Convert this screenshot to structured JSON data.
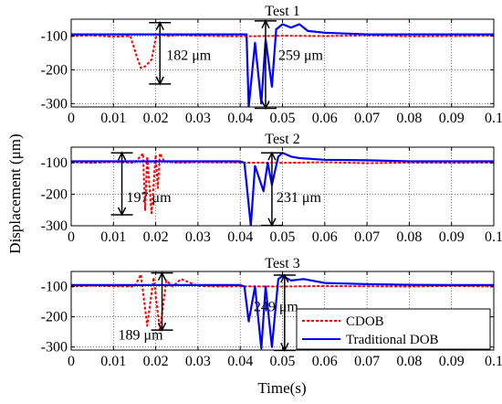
{
  "chart_data": {
    "type": "line",
    "ylabel": "Displacement (μm)",
    "xlabel": "Time(s)",
    "grid": true,
    "legend": {
      "placement": "bottom-right of third panel",
      "entries": [
        {
          "name": "CDOB",
          "color": "#ff0000",
          "style": "dotted"
        },
        {
          "name": "Traditional DOB",
          "color": "#0000ff",
          "style": "solid"
        }
      ]
    },
    "xlim": [
      0,
      0.1
    ],
    "x_ticks": [
      "0",
      "0.01",
      "0.02",
      "0.03",
      "0.04",
      "0.05",
      "0.06",
      "0.07",
      "0.08",
      "0.09",
      "0.1"
    ],
    "y_ticks": [
      "-100",
      "-200",
      "-300"
    ],
    "panels": [
      {
        "title": "Test 1",
        "ylim": [
          -310,
          -50
        ],
        "annotations": [
          {
            "text": "182 μm",
            "x": 0.021,
            "y_top": -60,
            "y_bottom": -242
          },
          {
            "text": "259 μm",
            "x": 0.046,
            "y_top": -55,
            "y_bottom": -314
          }
        ],
        "series": [
          {
            "name": "CDOB",
            "x": [
              0,
              0.005,
              0.01,
              0.014,
              0.0155,
              0.0165,
              0.0175,
              0.019,
              0.02,
              0.021,
              0.023,
              0.025,
              0.03,
              0.035,
              0.04,
              0.045,
              0.05,
              0.06,
              0.07,
              0.08,
              0.09,
              0.1
            ],
            "y": [
              -100,
              -98,
              -102,
              -100,
              -160,
              -195,
              -190,
              -170,
              -105,
              -95,
              -100,
              -97,
              -99,
              -100,
              -101,
              -100,
              -99,
              -100,
              -98,
              -101,
              -100,
              -99
            ]
          },
          {
            "name": "Traditional DOB",
            "x": [
              0,
              0.005,
              0.01,
              0.015,
              0.02,
              0.025,
              0.03,
              0.035,
              0.04,
              0.0415,
              0.042,
              0.0435,
              0.045,
              0.046,
              0.0475,
              0.0485,
              0.05,
              0.052,
              0.054,
              0.056,
              0.06,
              0.07,
              0.08,
              0.09,
              0.1
            ],
            "y": [
              -95,
              -95,
              -95,
              -95,
              -95,
              -95,
              -95,
              -95,
              -95,
              -95,
              -310,
              -120,
              -300,
              -110,
              -250,
              -80,
              -65,
              -75,
              -65,
              -85,
              -90,
              -95,
              -95,
              -95,
              -95
            ]
          }
        ]
      },
      {
        "title": "Test 2",
        "ylim": [
          -300,
          -50
        ],
        "annotations": [
          {
            "text": "197 μm",
            "x": 0.012,
            "y_top": -68,
            "y_bottom": -265
          },
          {
            "text": "231 μm",
            "x": 0.0475,
            "y_top": -68,
            "y_bottom": -299
          }
        ],
        "series": [
          {
            "name": "CDOB",
            "x": [
              0,
              0.005,
              0.01,
              0.015,
              0.017,
              0.0175,
              0.018,
              0.019,
              0.02,
              0.0205,
              0.021,
              0.022,
              0.025,
              0.03,
              0.04,
              0.05,
              0.06,
              0.07,
              0.08,
              0.09,
              0.1
            ],
            "y": [
              -98,
              -100,
              -97,
              -100,
              -70,
              -250,
              -80,
              -260,
              -75,
              -180,
              -70,
              -95,
              -100,
              -98,
              -99,
              -100,
              -98,
              -101,
              -99,
              -100,
              -99
            ],
            "note": "steep spikes"
          },
          {
            "name": "Traditional DOB",
            "x": [
              0,
              0.01,
              0.02,
              0.03,
              0.04,
              0.041,
              0.0425,
              0.0435,
              0.0455,
              0.0465,
              0.0475,
              0.049,
              0.05,
              0.052,
              0.054,
              0.06,
              0.07,
              0.08,
              0.09,
              0.1
            ],
            "y": [
              -95,
              -95,
              -95,
              -95,
              -95,
              -100,
              -300,
              -110,
              -190,
              -100,
              -170,
              -80,
              -68,
              -80,
              -85,
              -90,
              -92,
              -95,
              -95,
              -95
            ]
          }
        ]
      },
      {
        "title": "Test 3",
        "ylim": [
          -310,
          -50
        ],
        "annotations": [
          {
            "text": "189 μm",
            "x": 0.0215,
            "y_top": -55,
            "y_bottom": -244
          },
          {
            "text": "249 μm",
            "x": 0.0505,
            "y_top": -62,
            "y_bottom": -311
          }
        ],
        "series": [
          {
            "name": "CDOB",
            "x": [
              0,
              0.005,
              0.01,
              0.015,
              0.0165,
              0.018,
              0.0195,
              0.021,
              0.0225,
              0.024,
              0.026,
              0.03,
              0.035,
              0.04,
              0.05,
              0.06,
              0.07,
              0.08,
              0.09,
              0.1
            ],
            "y": [
              -100,
              -97,
              -99,
              -100,
              -60,
              -230,
              -70,
              -245,
              -80,
              -100,
              -75,
              -98,
              -100,
              -99,
              -100,
              -98,
              -99,
              -100,
              -98,
              -100
            ]
          },
          {
            "name": "Traditional DOB",
            "x": [
              0,
              0.01,
              0.02,
              0.03,
              0.04,
              0.041,
              0.042,
              0.0435,
              0.045,
              0.046,
              0.0475,
              0.049,
              0.05,
              0.052,
              0.055,
              0.06,
              0.07,
              0.08,
              0.09,
              0.1
            ],
            "y": [
              -95,
              -95,
              -95,
              -95,
              -95,
              -100,
              -215,
              -100,
              -305,
              -100,
              -300,
              -75,
              -65,
              -80,
              -75,
              -88,
              -92,
              -94,
              -95,
              -95
            ]
          }
        ]
      }
    ]
  }
}
